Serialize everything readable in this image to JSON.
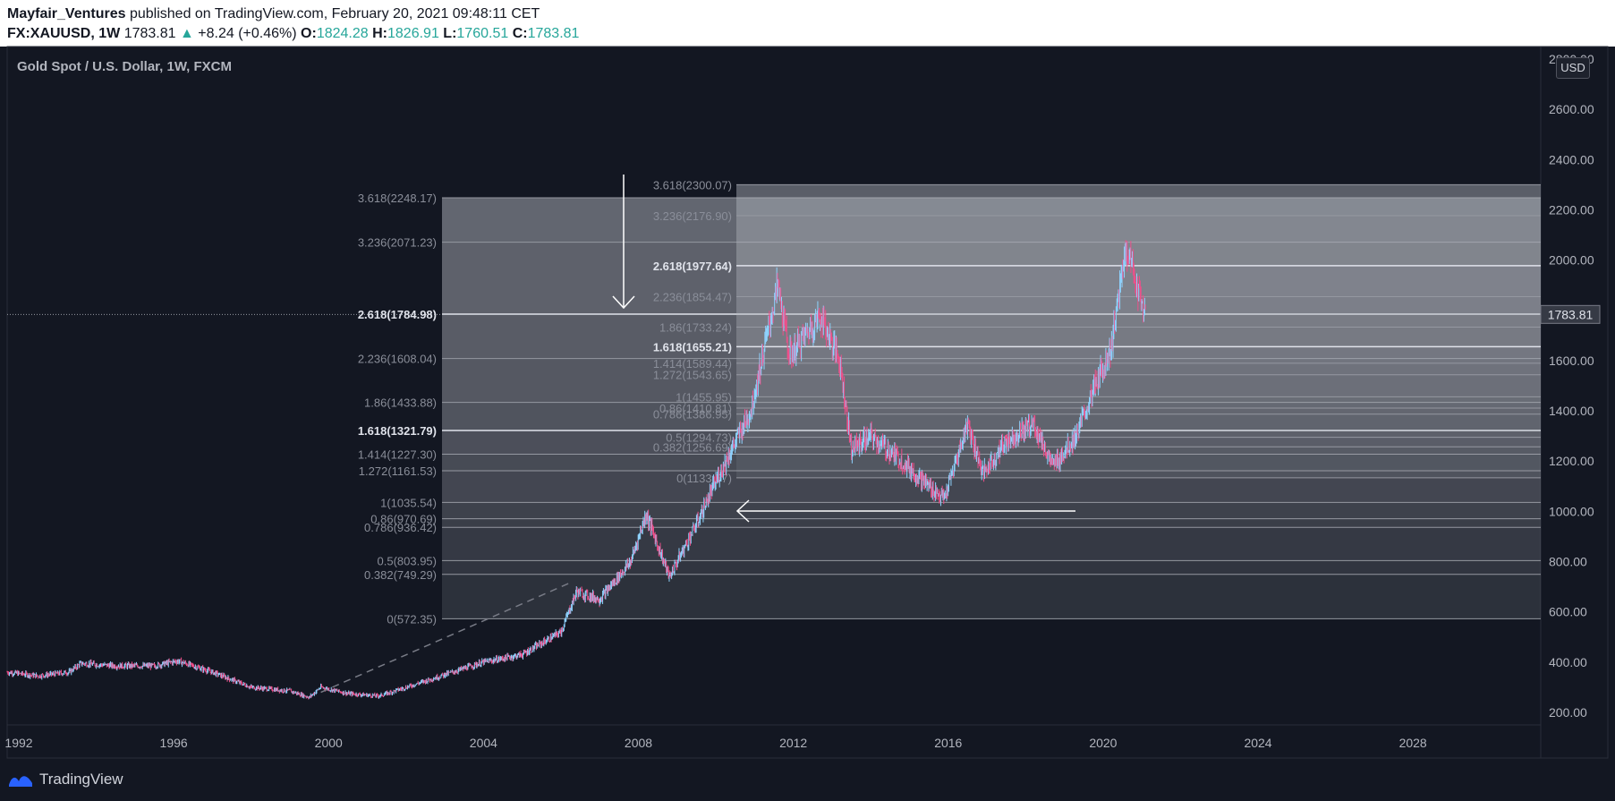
{
  "header": {
    "author": "Mayfair_Ventures",
    "published_text": " published on TradingView.com, February 20, 2021 09:48:11 CET",
    "symbol": "FX:XAUUSD, 1W",
    "last": "1783.81",
    "change": "+8.24 (+0.46%)",
    "o_label": "O:",
    "o_value": "1824.28",
    "h_label": "H:",
    "h_value": "1826.91",
    "l_label": "L:",
    "l_value": "1760.51",
    "c_label": "C:",
    "c_value": "1783.81"
  },
  "chart_title": "Gold Spot / U.S. Dollar, 1W, FXCM",
  "currency_badge": "USD",
  "footer_brand": "TradingView",
  "colors": {
    "background": "#131722",
    "up": "#26a69a",
    "candle_up": "#8fd3ff",
    "candle_down": "#ef4f8a",
    "fib_line": "#9598a1"
  },
  "chart_data": {
    "type": "candlestick",
    "title": "Gold Spot / U.S. Dollar, 1W, FXCM",
    "x_axis": {
      "ticks": [
        "1992",
        "1996",
        "2000",
        "2004",
        "2008",
        "2012",
        "2016",
        "2020",
        "2024",
        "2028"
      ],
      "range": [
        1991.7,
        2031.3
      ]
    },
    "y_axis": {
      "ticks": [
        "200.00",
        "400.00",
        "600.00",
        "800.00",
        "1000.00",
        "1200.00",
        "1400.00",
        "1600.00",
        "1800.00",
        "2000.00",
        "2200.00",
        "2400.00",
        "2600.00",
        "2800.00"
      ],
      "range": [
        150,
        2850
      ],
      "unit": "USD"
    },
    "last_price": 1783.81,
    "price_path": [
      [
        1991.7,
        360
      ],
      [
        1992.5,
        345
      ],
      [
        1993.3,
        360
      ],
      [
        1993.6,
        395
      ],
      [
        1994.5,
        385
      ],
      [
        1995.5,
        385
      ],
      [
        1996.1,
        405
      ],
      [
        1997.0,
        360
      ],
      [
        1998.0,
        300
      ],
      [
        1999.0,
        285
      ],
      [
        1999.5,
        260
      ],
      [
        1999.8,
        300
      ],
      [
        2000.5,
        275
      ],
      [
        2001.3,
        265
      ],
      [
        2002.0,
        300
      ],
      [
        2003.0,
        350
      ],
      [
        2004.0,
        400
      ],
      [
        2005.0,
        430
      ],
      [
        2006.0,
        520
      ],
      [
        2006.4,
        680
      ],
      [
        2007.0,
        650
      ],
      [
        2007.8,
        800
      ],
      [
        2008.2,
        990
      ],
      [
        2008.8,
        740
      ],
      [
        2009.5,
        950
      ],
      [
        2010.0,
        1120
      ],
      [
        2010.9,
        1400
      ],
      [
        2011.6,
        1900
      ],
      [
        2011.9,
        1620
      ],
      [
        2012.7,
        1780
      ],
      [
        2013.2,
        1600
      ],
      [
        2013.5,
        1250
      ],
      [
        2014.0,
        1300
      ],
      [
        2014.8,
        1200
      ],
      [
        2015.5,
        1100
      ],
      [
        2015.9,
        1050
      ],
      [
        2016.5,
        1350
      ],
      [
        2016.9,
        1150
      ],
      [
        2017.5,
        1280
      ],
      [
        2018.2,
        1350
      ],
      [
        2018.7,
        1180
      ],
      [
        2019.3,
        1300
      ],
      [
        2019.8,
        1500
      ],
      [
        2020.2,
        1650
      ],
      [
        2020.6,
        2060
      ],
      [
        2020.9,
        1880
      ],
      [
        2021.1,
        1783.81
      ]
    ],
    "fib_extension_1": {
      "levels": [
        {
          "label": "3.618(2248.17)",
          "value": 2248.17
        },
        {
          "label": "3.236(2071.23)",
          "value": 2071.23
        },
        {
          "label": "2.618(1784.98)",
          "value": 1784.98
        },
        {
          "label": "2.236(1608.04)",
          "value": 1608.04
        },
        {
          "label": "1.86(1433.88)",
          "value": 1433.88
        },
        {
          "label": "1.618(1321.79)",
          "value": 1321.79
        },
        {
          "label": "1.414(1227.30)",
          "value": 1227.3
        },
        {
          "label": "1.272(1161.53)",
          "value": 1161.53
        },
        {
          "label": "1(1035.54)",
          "value": 1035.54
        },
        {
          "label": "0.86(970.69)",
          "value": 970.69
        },
        {
          "label": "0.786(936.42)",
          "value": 936.42
        },
        {
          "label": "0.5(803.95)",
          "value": 803.95
        },
        {
          "label": "0.382(749.29)",
          "value": 749.29
        },
        {
          "label": "0(572.35)",
          "value": 572.35
        }
      ]
    },
    "fib_extension_2": {
      "levels": [
        {
          "label": "3.618(2300.07)",
          "value": 2300.07
        },
        {
          "label": "3.236(2176.90)",
          "value": 2176.9
        },
        {
          "label": "2.618(1977.64)",
          "value": 1977.64
        },
        {
          "label": "2.236(1854.47)",
          "value": 1854.47
        },
        {
          "label": "1.86(1733.24)",
          "value": 1733.24
        },
        {
          "label": "1.618(1655.21)",
          "value": 1655.21
        },
        {
          "label": "1.414(1589.44)",
          "value": 1589.44
        },
        {
          "label": "1.272(1543.65)",
          "value": 1543.65
        },
        {
          "label": "1(1455.95)",
          "value": 1455.95
        },
        {
          "label": "0.86(1410.81)",
          "value": 1410.81
        },
        {
          "label": "0.786(1386.95)",
          "value": 1386.95
        },
        {
          "label": "0.5(1294.73)",
          "value": 1294.73
        },
        {
          "label": "0.382(1256.69)",
          "value": 1256.69
        },
        {
          "label": "0(1133.57)",
          "value": 1133.57
        }
      ]
    }
  }
}
